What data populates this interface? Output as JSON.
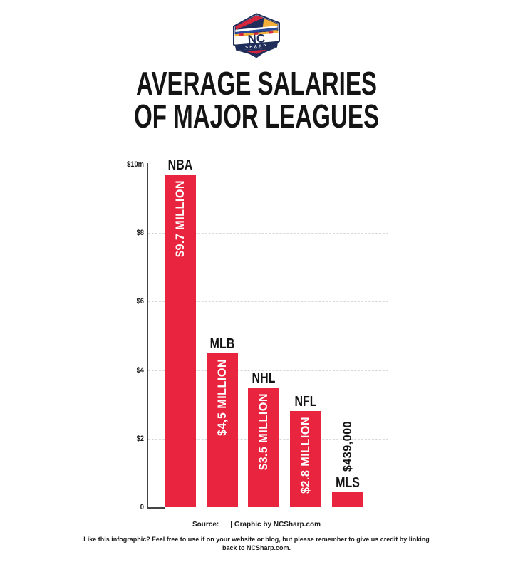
{
  "logo": {
    "nc": "NC",
    "sharp": "SHARP"
  },
  "title": {
    "line1": "AVERAGE SALARIES",
    "line2": "OF MAJOR LEAGUES"
  },
  "chart_data": {
    "type": "bar",
    "title": "Average Salaries of Major Leagues",
    "categories": [
      "NBA",
      "MLB",
      "NHL",
      "NFL",
      "MLS"
    ],
    "values": [
      9.7,
      4.5,
      3.5,
      2.8,
      0.439
    ],
    "unit": "USD millions",
    "ylim": [
      0,
      10
    ],
    "ytick_labels": [
      "$10m",
      "$8",
      "$6",
      "$4",
      "$2",
      "0"
    ],
    "ytick_values": [
      10,
      8,
      6,
      4,
      2,
      0
    ],
    "grid": "dashed horizontal gridlines",
    "legend": "none",
    "bar_color": "#e8243f",
    "bars": [
      {
        "league": "NBA",
        "value": 9.7,
        "value_label": "$9.7 MILLION",
        "label_position": "inside"
      },
      {
        "league": "MLB",
        "value": 4.5,
        "value_label": "$4,5 MILLION",
        "label_position": "inside"
      },
      {
        "league": "NHL",
        "value": 3.5,
        "value_label": "$3.5 MILLION",
        "label_position": "inside"
      },
      {
        "league": "NFL",
        "value": 2.8,
        "value_label": "$2.8 MILLION",
        "label_position": "inside"
      },
      {
        "league": "MLS",
        "value": 0.439,
        "value_label": "$439,000",
        "label_position": "outside"
      }
    ]
  },
  "footer": {
    "source_label": "Source:",
    "credit": "| Graphic by NCSharp.com",
    "note": "Like this infographic? Feel free to use if on your website or blog, but please remember to give us credit by linking back to NCSharp.com."
  }
}
